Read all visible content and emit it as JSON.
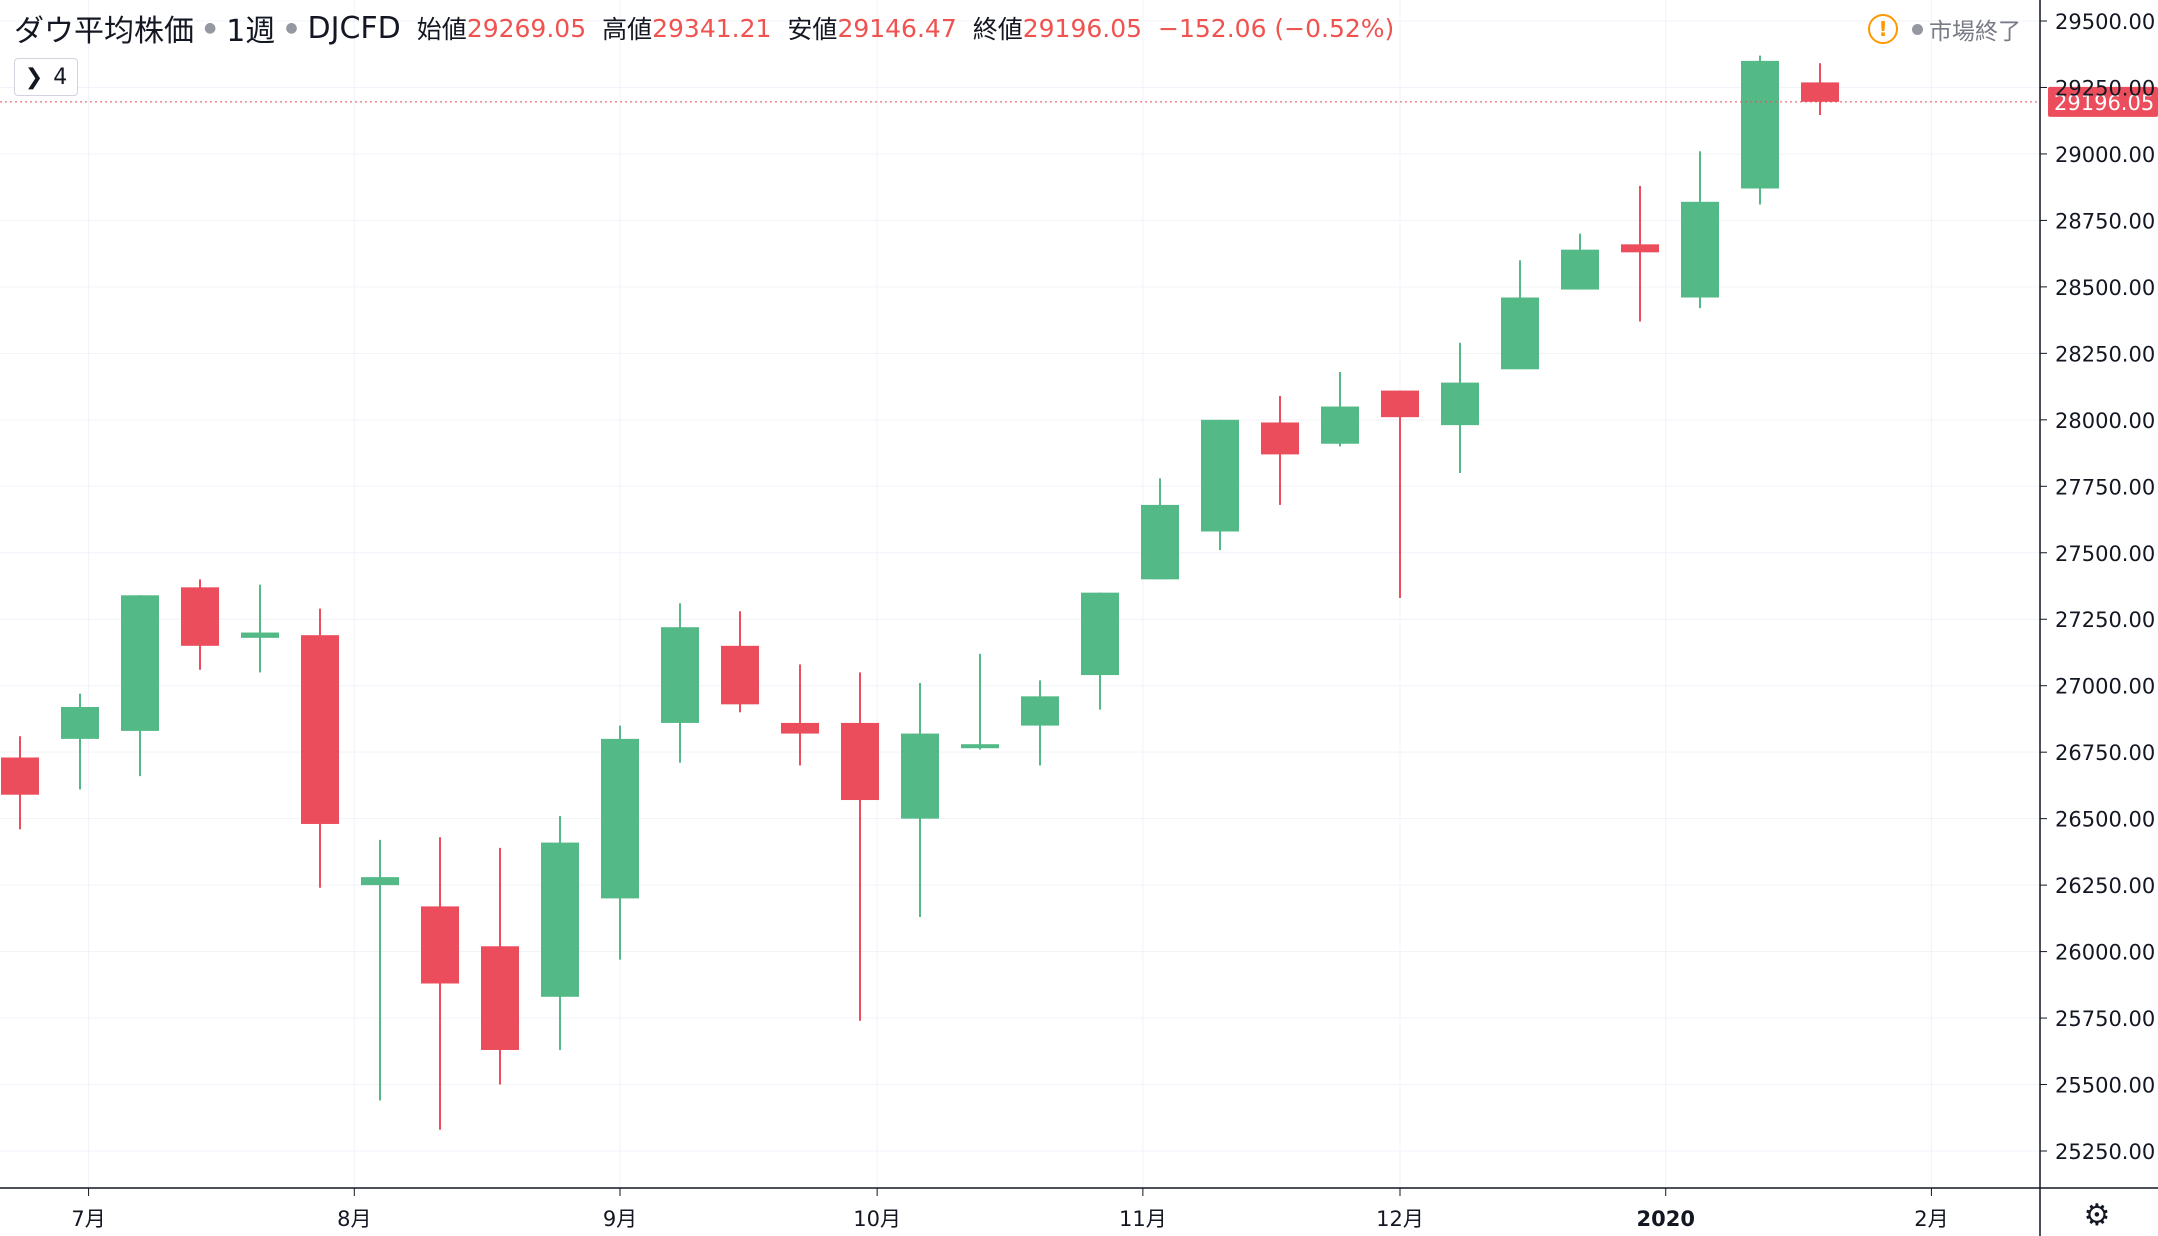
{
  "legend": {
    "symbol": "ダウ平均株価",
    "interval": "1週",
    "ticker": "DJCFD",
    "open_label": "始値",
    "open": "29269.05",
    "high_label": "高値",
    "high": "29341.21",
    "low_label": "安値",
    "low": "29146.47",
    "close_label": "終値",
    "close": "29196.05",
    "change": "−152.06 (−0.52%)"
  },
  "collapse": {
    "count": "4"
  },
  "status": {
    "warning_icon": "!",
    "text": "市場終了"
  },
  "last_price_label": "29196.05",
  "colors": {
    "up": "#53b987",
    "down": "#eb4d5c",
    "grid": "#f0f3fa",
    "axis": "#131722"
  },
  "chart_data": {
    "type": "candlestick",
    "interval": "weekly",
    "ylim": [
      25150,
      29520
    ],
    "yticks": [
      25250,
      25500,
      25750,
      26000,
      26250,
      26500,
      26750,
      27000,
      27250,
      27500,
      27750,
      28000,
      28250,
      28500,
      28750,
      29000,
      29250,
      29500
    ],
    "ytick_labels": [
      "25250.00",
      "25500.00",
      "25750.00",
      "26000.00",
      "26250.00",
      "26500.00",
      "26750.00",
      "27000.00",
      "27250.00",
      "27500.00",
      "27750.00",
      "28000.00",
      "28250.00",
      "28500.00",
      "28750.00",
      "29000.00",
      "29250.00",
      "29500.00"
    ],
    "x_labels": [
      {
        "label": "7月",
        "date": "2019-07-01"
      },
      {
        "label": "8月",
        "date": "2019-08-01"
      },
      {
        "label": "9月",
        "date": "2019-09-01"
      },
      {
        "label": "10月",
        "date": "2019-10-01"
      },
      {
        "label": "11月",
        "date": "2019-11-01"
      },
      {
        "label": "12月",
        "date": "2019-12-01"
      },
      {
        "label": "2020",
        "date": "2020-01-01"
      },
      {
        "label": "2月",
        "date": "2020-02-01"
      }
    ],
    "candles": [
      {
        "date": "2019-06-23",
        "open": 26730,
        "high": 26810,
        "low": 26460,
        "close": 26590
      },
      {
        "date": "2019-06-30",
        "open": 26800,
        "high": 26970,
        "low": 26610,
        "close": 26920
      },
      {
        "date": "2019-07-07",
        "open": 26830,
        "high": 27340,
        "low": 26660,
        "close": 27340
      },
      {
        "date": "2019-07-14",
        "open": 27370,
        "high": 27400,
        "low": 27060,
        "close": 27150
      },
      {
        "date": "2019-07-21",
        "open": 27180,
        "high": 27380,
        "low": 27050,
        "close": 27200
      },
      {
        "date": "2019-07-28",
        "open": 27190,
        "high": 27290,
        "low": 26240,
        "close": 26480
      },
      {
        "date": "2019-08-04",
        "open": 26250,
        "high": 26420,
        "low": 25440,
        "close": 26280
      },
      {
        "date": "2019-08-11",
        "open": 26170,
        "high": 26430,
        "low": 25330,
        "close": 25880
      },
      {
        "date": "2019-08-18",
        "open": 26020,
        "high": 26390,
        "low": 25500,
        "close": 25630
      },
      {
        "date": "2019-08-25",
        "open": 25830,
        "high": 26510,
        "low": 25630,
        "close": 26410
      },
      {
        "date": "2019-09-01",
        "open": 26200,
        "high": 26850,
        "low": 25970,
        "close": 26800
      },
      {
        "date": "2019-09-08",
        "open": 26860,
        "high": 27310,
        "low": 26710,
        "close": 27220
      },
      {
        "date": "2019-09-15",
        "open": 27150,
        "high": 27280,
        "low": 26900,
        "close": 26930
      },
      {
        "date": "2019-09-22",
        "open": 26860,
        "high": 27080,
        "low": 26700,
        "close": 26820
      },
      {
        "date": "2019-09-29",
        "open": 26860,
        "high": 27050,
        "low": 25740,
        "close": 26570
      },
      {
        "date": "2019-10-06",
        "open": 26500,
        "high": 27010,
        "low": 26130,
        "close": 26820
      },
      {
        "date": "2019-10-13",
        "open": 26770,
        "high": 27120,
        "low": 26760,
        "close": 26780
      },
      {
        "date": "2019-10-20",
        "open": 26850,
        "high": 27020,
        "low": 26700,
        "close": 26960
      },
      {
        "date": "2019-10-27",
        "open": 27040,
        "high": 27350,
        "low": 26910,
        "close": 27350
      },
      {
        "date": "2019-11-03",
        "open": 27400,
        "high": 27780,
        "low": 27400,
        "close": 27680
      },
      {
        "date": "2019-11-10",
        "open": 27580,
        "high": 28000,
        "low": 27510,
        "close": 28000
      },
      {
        "date": "2019-11-17",
        "open": 27990,
        "high": 28090,
        "low": 27680,
        "close": 27870
      },
      {
        "date": "2019-11-24",
        "open": 27910,
        "high": 28180,
        "low": 27900,
        "close": 28050
      },
      {
        "date": "2019-12-01",
        "open": 28110,
        "high": 28110,
        "low": 27330,
        "close": 28010
      },
      {
        "date": "2019-12-08",
        "open": 27980,
        "high": 28290,
        "low": 27800,
        "close": 28140
      },
      {
        "date": "2019-12-15",
        "open": 28190,
        "high": 28600,
        "low": 28190,
        "close": 28460
      },
      {
        "date": "2019-12-22",
        "open": 28490,
        "high": 28700,
        "low": 28490,
        "close": 28640
      },
      {
        "date": "2019-12-29",
        "open": 28660,
        "high": 28880,
        "low": 28370,
        "close": 28630
      },
      {
        "date": "2020-01-05",
        "open": 28460,
        "high": 29010,
        "low": 28420,
        "close": 28820
      },
      {
        "date": "2020-01-12",
        "open": 28870,
        "high": 29370,
        "low": 28810,
        "close": 29350
      },
      {
        "date": "2020-01-19",
        "open": 29269.05,
        "high": 29341.21,
        "low": 29146.47,
        "close": 29196.05
      }
    ]
  }
}
